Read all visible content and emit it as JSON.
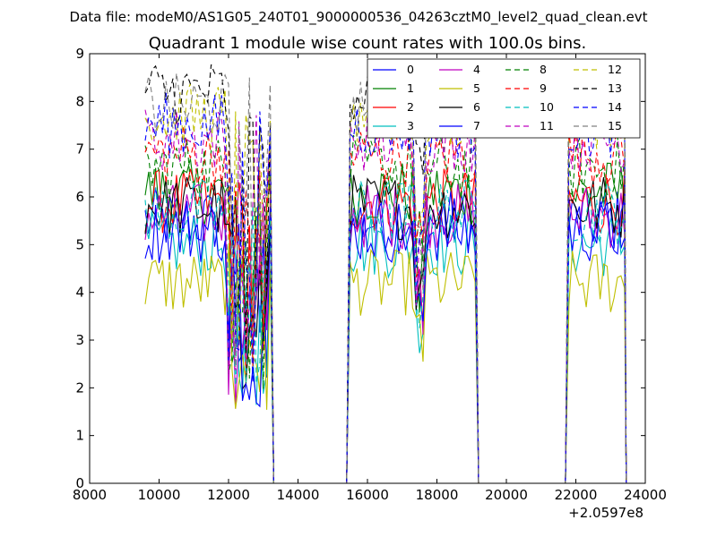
{
  "chart_data": {
    "type": "line",
    "suptitle": "Data file: modeM0/AS1G05_240T01_9000000536_04263cztM0_level2_quad_clean.evt",
    "title": "Quadrant 1 module wise count rates with 100.0s bins.",
    "xlabel": "",
    "ylabel": "",
    "x_offset_label": "+2.0597e8",
    "xlim": [
      8000,
      24000
    ],
    "ylim": [
      0,
      9
    ],
    "xticks": [
      "8000",
      "10000",
      "12000",
      "14000",
      "16000",
      "18000",
      "20000",
      "22000",
      "24000"
    ],
    "yticks": [
      "0",
      "1",
      "2",
      "3",
      "4",
      "5",
      "6",
      "7",
      "8",
      "9"
    ],
    "grid": false,
    "legend_position": "top-right",
    "bin_seconds": 100,
    "segments": [
      {
        "x_start": 9600,
        "x_end": 13200
      },
      {
        "x_start": 15500,
        "x_end": 19100
      },
      {
        "x_start": 21800,
        "x_end": 23400
      }
    ],
    "gap_dip_x": [
      12000,
      12400
    ],
    "zero_spans": [
      [
        13300,
        15400
      ],
      [
        19200,
        21700
      ]
    ],
    "series": [
      {
        "name": "0",
        "color": "#0000ff",
        "dash": "solid",
        "level": 5.5
      },
      {
        "name": "1",
        "color": "#008000",
        "dash": "solid",
        "level": 6.1
      },
      {
        "name": "2",
        "color": "#ff0000",
        "dash": "solid",
        "level": 5.9
      },
      {
        "name": "3",
        "color": "#00bfbf",
        "dash": "solid",
        "level": 5.0
      },
      {
        "name": "4",
        "color": "#bf00bf",
        "dash": "solid",
        "level": 5.6
      },
      {
        "name": "5",
        "color": "#bfbf00",
        "dash": "solid",
        "level": 4.2
      },
      {
        "name": "6",
        "color": "#000000",
        "dash": "solid",
        "level": 5.8
      },
      {
        "name": "7",
        "color": "#0000ff",
        "dash": "solid",
        "level": 5.3
      },
      {
        "name": "8",
        "color": "#008000",
        "dash": "dashed",
        "level": 6.6
      },
      {
        "name": "9",
        "color": "#ff0000",
        "dash": "dashed",
        "level": 6.9
      },
      {
        "name": "10",
        "color": "#00bfbf",
        "dash": "dashed",
        "level": 5.7
      },
      {
        "name": "11",
        "color": "#bf00bf",
        "dash": "dashed",
        "level": 7.2
      },
      {
        "name": "12",
        "color": "#bfbf00",
        "dash": "dashed",
        "level": 7.7
      },
      {
        "name": "13",
        "color": "#000000",
        "dash": "dashed",
        "level": 8.2
      },
      {
        "name": "14",
        "color": "#0000ff",
        "dash": "dashed",
        "level": 7.5
      },
      {
        "name": "15",
        "color": "#808080",
        "dash": "dashed",
        "level": 7.9
      }
    ]
  }
}
